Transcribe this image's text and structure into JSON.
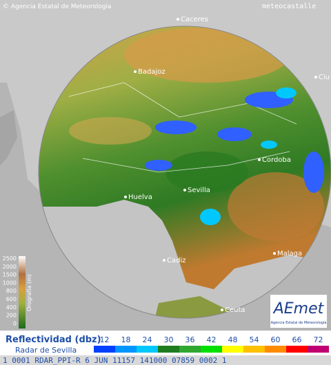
{
  "header": {
    "credit": "© Agencia Estatal de Meteorología",
    "site": "meteocastalle"
  },
  "cities": [
    "Caceres",
    "Badajoz",
    "Ciu",
    "Cordoba",
    "Sevilla",
    "Huelva",
    "Cadiz",
    "Malaga",
    "Ceuta"
  ],
  "orography": {
    "title": "Orografía (m)",
    "levels": [
      2500,
      2000,
      1500,
      1000,
      800,
      600,
      400,
      200,
      0
    ]
  },
  "logo": {
    "name": "AEmet",
    "subtitle": "Agencia Estatal de Meteorología"
  },
  "legend": {
    "title": "Reflectividad (dbz)",
    "subtitle": "Radar de Sevilla",
    "values": [
      12,
      18,
      24,
      30,
      36,
      42,
      48,
      54,
      60,
      66,
      72
    ],
    "colors": [
      "#0040ff",
      "#0096ff",
      "#00c8ff",
      "#1e7d1e",
      "#30a830",
      "#00e000",
      "#ffff00",
      "#ffc000",
      "#ff8c00",
      "#ff0000",
      "#c00070"
    ]
  },
  "footer": "1 0001 RDAR_PPI-R  6 JUN 11157 141000 07859 0002 1"
}
